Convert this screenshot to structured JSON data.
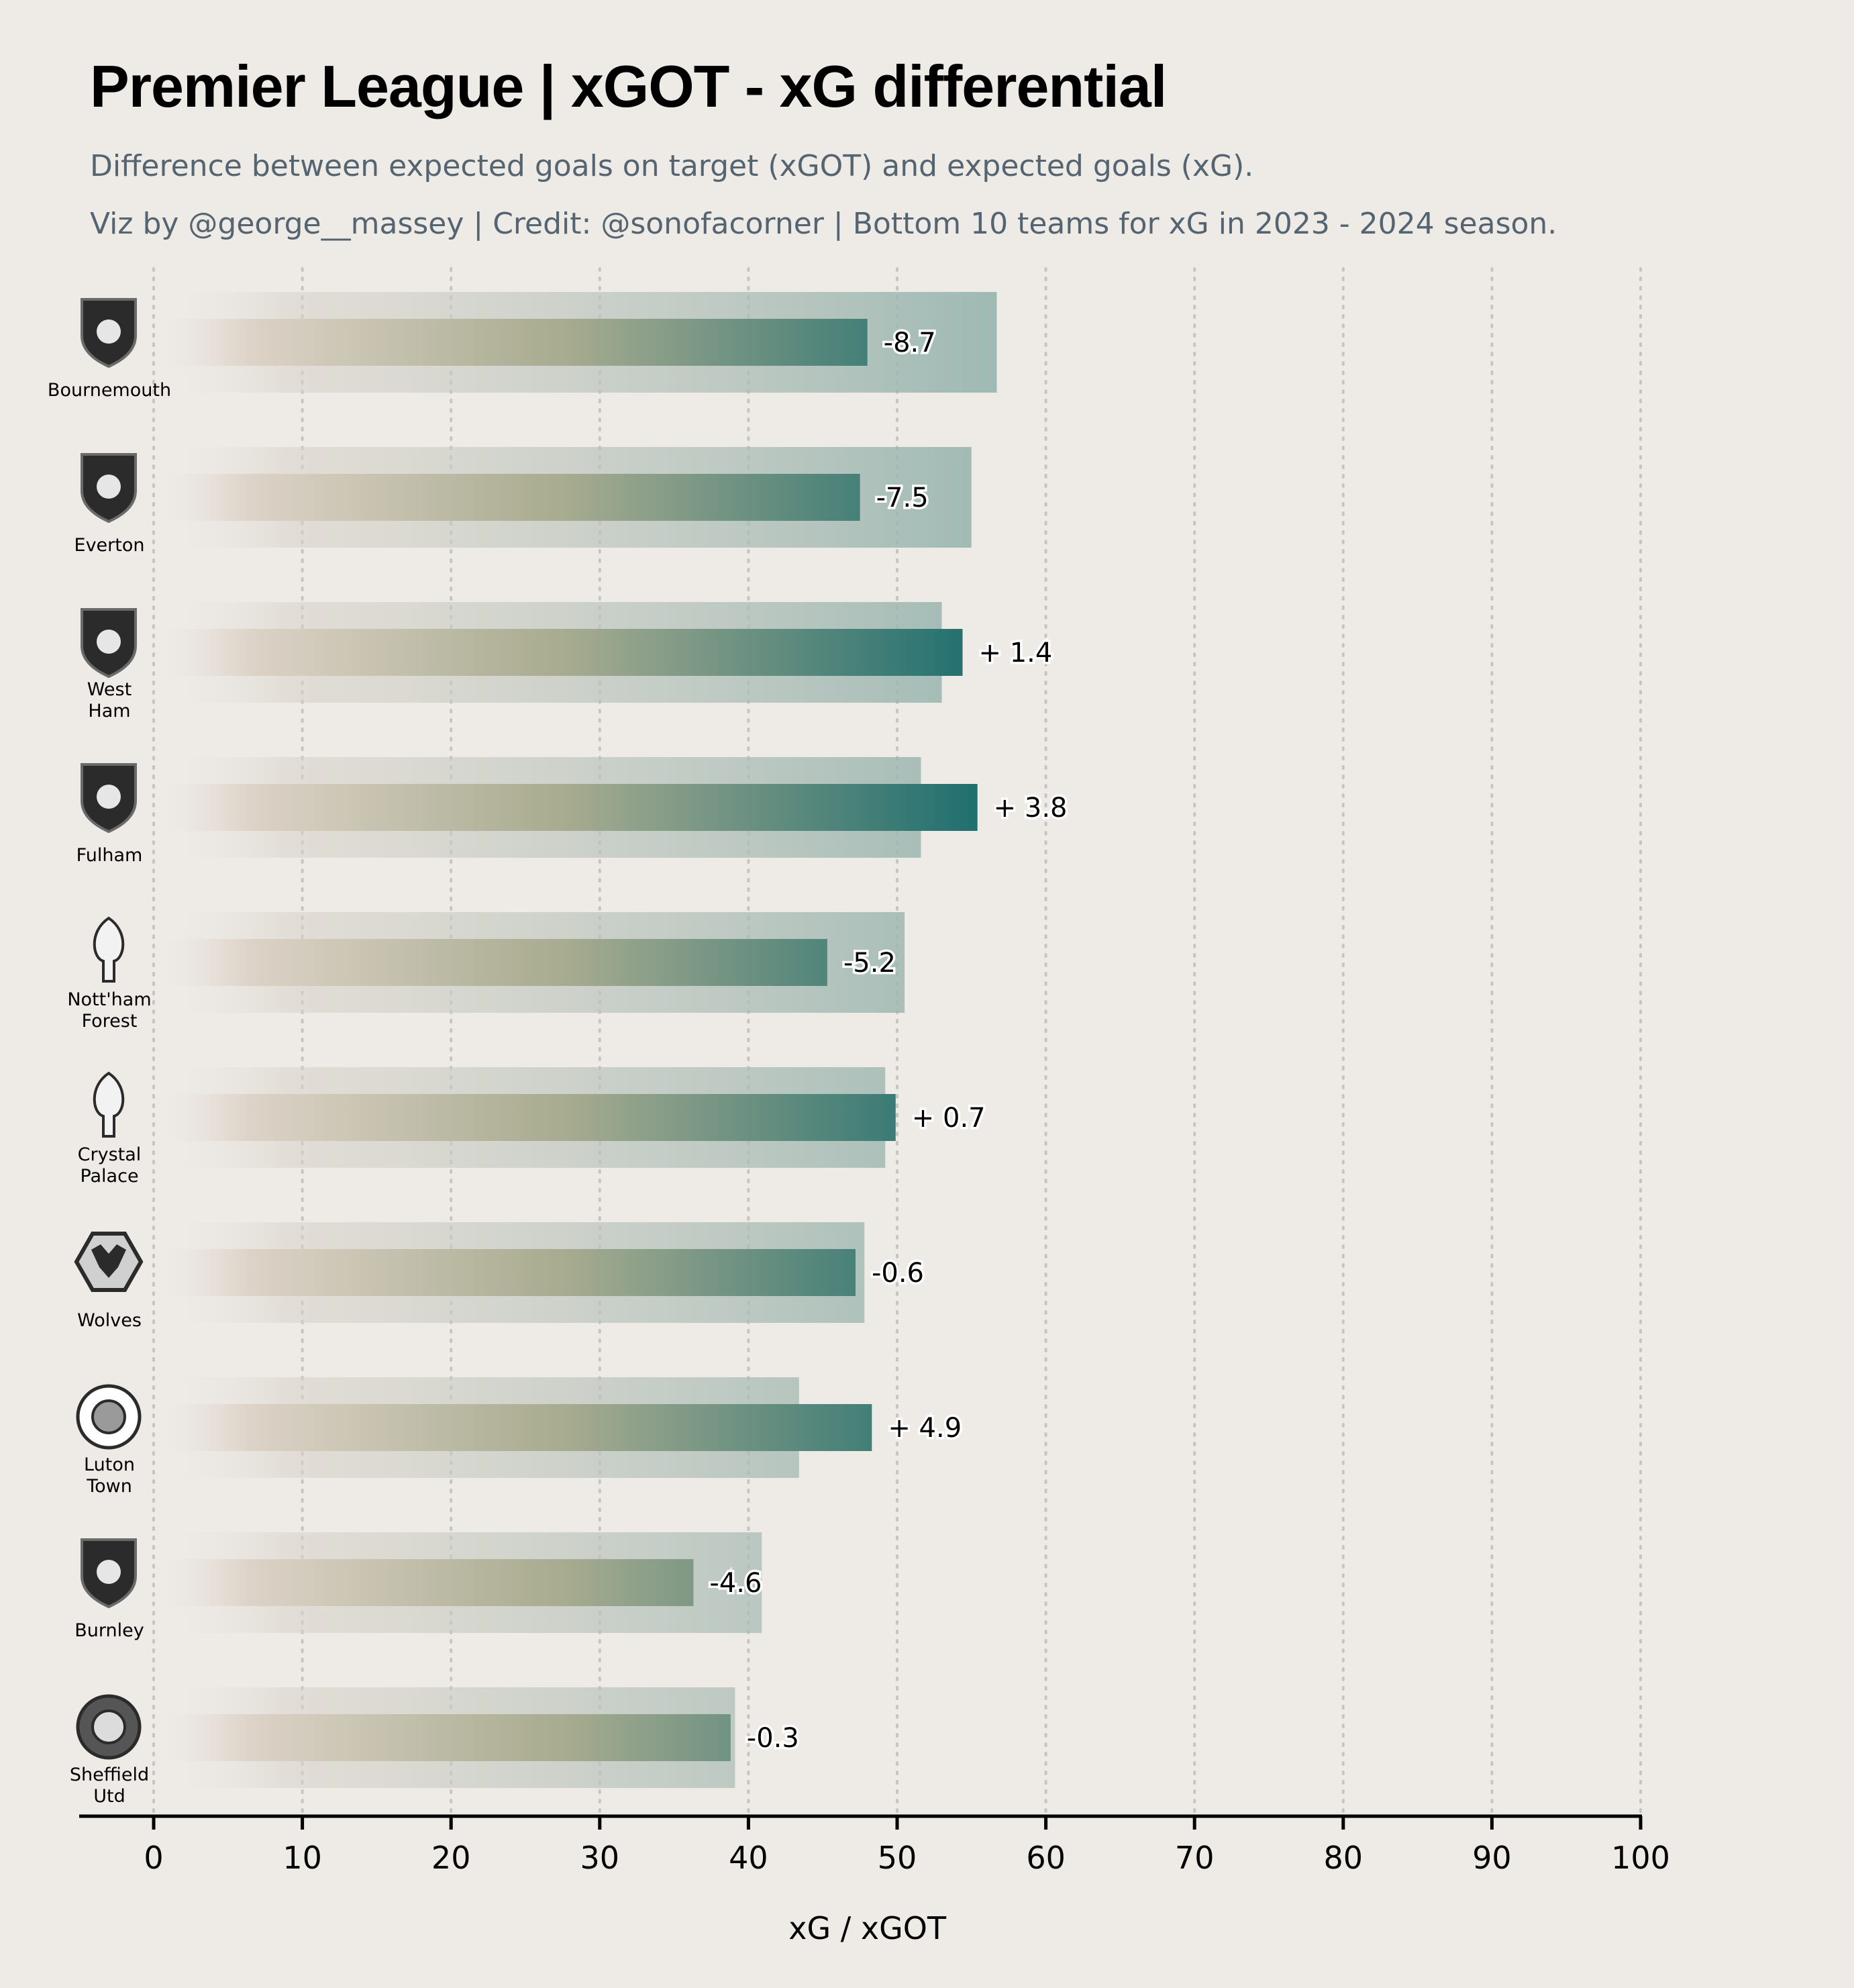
{
  "header": {
    "title": "Premier League | xGOT - xG differential",
    "subtitle_1": "Difference between expected goals on target (xGOT) and expected goals (xG).",
    "subtitle_2": "Viz by @george__massey | Credit: @sonofacorner | Bottom 10 teams for xG in 2023 - 2024 season."
  },
  "chart_data": {
    "type": "bar",
    "orientation": "horizontal",
    "title": "Premier League | xGOT - xG differential",
    "xlabel": "xG / xGOT",
    "ylabel": "",
    "xlim": [
      0,
      100
    ],
    "xticks": [
      0,
      10,
      20,
      30,
      40,
      50,
      60,
      70,
      80,
      90,
      100
    ],
    "grid": "vertical dotted",
    "categories": [
      {
        "name": "Bournemouth",
        "label_lines": [
          "Bournemouth"
        ]
      },
      {
        "name": "Everton",
        "label_lines": [
          "Everton"
        ]
      },
      {
        "name": "West Ham",
        "label_lines": [
          "West",
          "Ham"
        ]
      },
      {
        "name": "Fulham",
        "label_lines": [
          "Fulham"
        ]
      },
      {
        "name": "Nott'ham Forest",
        "label_lines": [
          "Nott'ham",
          "Forest"
        ]
      },
      {
        "name": "Crystal Palace",
        "label_lines": [
          "Crystal",
          "Palace"
        ]
      },
      {
        "name": "Wolves",
        "label_lines": [
          "Wolves"
        ]
      },
      {
        "name": "Luton Town",
        "label_lines": [
          "Luton",
          "Town"
        ]
      },
      {
        "name": "Burnley",
        "label_lines": [
          "Burnley"
        ]
      },
      {
        "name": "Sheffield Utd",
        "label_lines": [
          "Sheffield",
          "Utd"
        ]
      }
    ],
    "series": [
      {
        "values": [
          56.7,
          55.0,
          53.0,
          51.6,
          50.5,
          49.2,
          47.8,
          43.4,
          40.9,
          39.1
        ]
      },
      {
        "values": [
          48.0,
          47.5,
          54.4,
          55.4,
          45.3,
          49.9,
          47.2,
          48.3,
          36.3,
          38.8
        ]
      }
    ],
    "differential_labels": [
      "-8.7",
      "-7.5",
      "+ 1.4",
      "+ 3.8",
      "-5.2",
      "+ 0.7",
      "-0.6",
      "+ 4.9",
      "-4.6",
      "-0.3"
    ],
    "colors": {
      "background": "#eeeae6",
      "gradient_start": "#eeeae6",
      "gradient_mid": "#a7ab8f",
      "gradient_end": "#1f6f6f",
      "grid": "#c9c4bf",
      "badge": "#2b2b2b"
    }
  }
}
